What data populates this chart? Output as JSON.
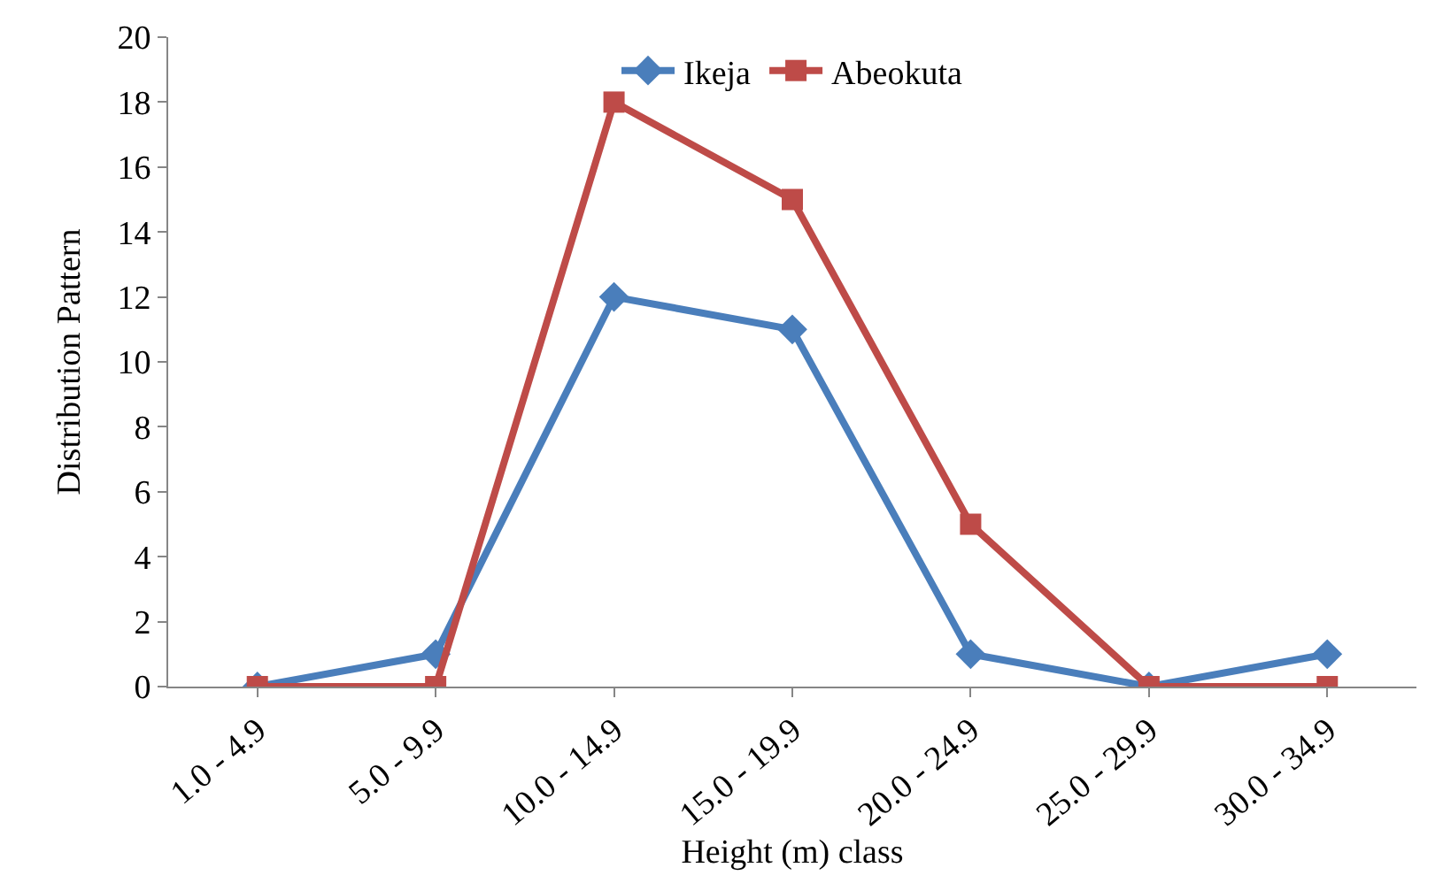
{
  "chart_data": {
    "type": "line",
    "xlabel": "Height (m) class",
    "ylabel": "Distribution Pattern",
    "categories": [
      "1.0 - 4.9",
      "5.0 - 9.9",
      "10.0 - 14.9",
      "15.0 - 19.9",
      "20.0 - 24.9",
      "25.0 - 29.9",
      "30.0 - 34.9"
    ],
    "series": [
      {
        "name": "Ikeja",
        "color": "#4a7ebb",
        "marker": "diamond",
        "values": [
          0,
          1,
          12,
          11,
          1,
          0,
          1
        ]
      },
      {
        "name": "Abeokuta",
        "color": "#be4b48",
        "marker": "square",
        "values": [
          0,
          0,
          18,
          15,
          5,
          0,
          0
        ]
      }
    ],
    "ylim": [
      0,
      20
    ],
    "yticks": [
      0,
      2,
      4,
      6,
      8,
      10,
      12,
      14,
      16,
      18,
      20
    ],
    "legend": "top",
    "line_style": "solid"
  }
}
